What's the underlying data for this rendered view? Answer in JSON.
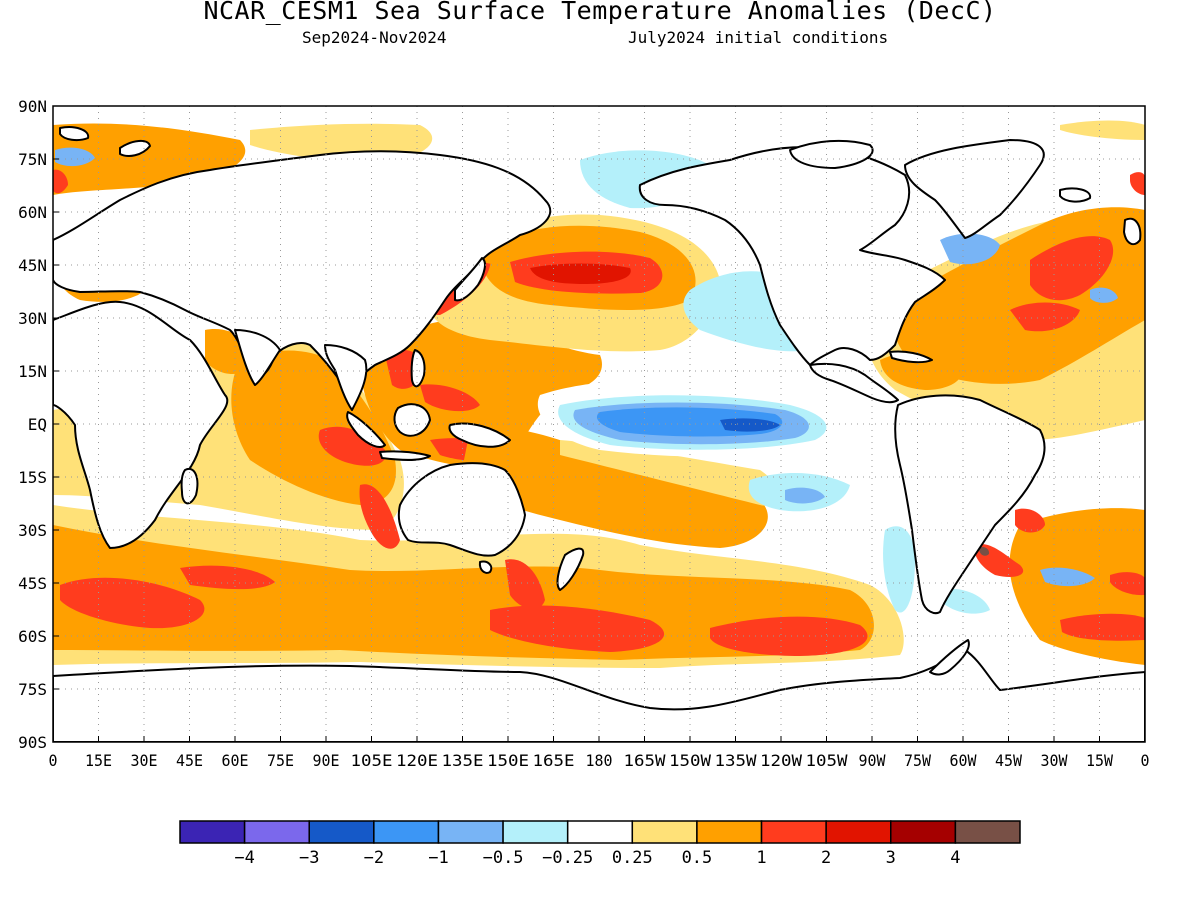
{
  "title": "NCAR_CESM1 Sea Surface Temperature Anomalies (DecC)",
  "subtitle_left": "Sep2024-Nov2024",
  "subtitle_right": "July2024 initial conditions",
  "map": {
    "lat_labels": [
      "90N",
      "75N",
      "60N",
      "45N",
      "30N",
      "15N",
      "EQ",
      "15S",
      "30S",
      "45S",
      "60S",
      "75S",
      "90S"
    ],
    "lon_labels": [
      "0",
      "15E",
      "30E",
      "45E",
      "60E",
      "75E",
      "90E",
      "105E",
      "120E",
      "135E",
      "150E",
      "165E",
      "180",
      "165W",
      "150W",
      "135W",
      "120W",
      "105W",
      "90W",
      "75W",
      "60W",
      "45W",
      "30W",
      "15W",
      "0"
    ],
    "lat_range": [
      -90,
      90
    ],
    "lon_range": [
      0,
      360
    ],
    "grid": "dotted",
    "land_color": "#ffffff",
    "coastline_color": "#000000"
  },
  "colorbar": {
    "colors": [
      "#3b24b4",
      "#7b68ec",
      "#1559c8",
      "#3c96f5",
      "#78b4f5",
      "#b4f0fa",
      "#ffffff",
      "#ffe178",
      "#ffa000",
      "#ff3c1e",
      "#e11400",
      "#a50000",
      "#785046"
    ],
    "labels": [
      "-4",
      "-3",
      "-2",
      "-1",
      "-0.5",
      "-0.25",
      "0.25",
      "0.5",
      "1",
      "2",
      "3",
      "4"
    ]
  },
  "anomaly_colors": {
    "strong_warm": "#a50000",
    "warm3": "#e11400",
    "warm2": "#ff3c1e",
    "warm1": "#ffa000",
    "warm05": "#ffe178",
    "cool025": "#b4f0fa",
    "cool05": "#78b4f5",
    "cool1": "#3c96f5",
    "cool2": "#1559c8"
  }
}
